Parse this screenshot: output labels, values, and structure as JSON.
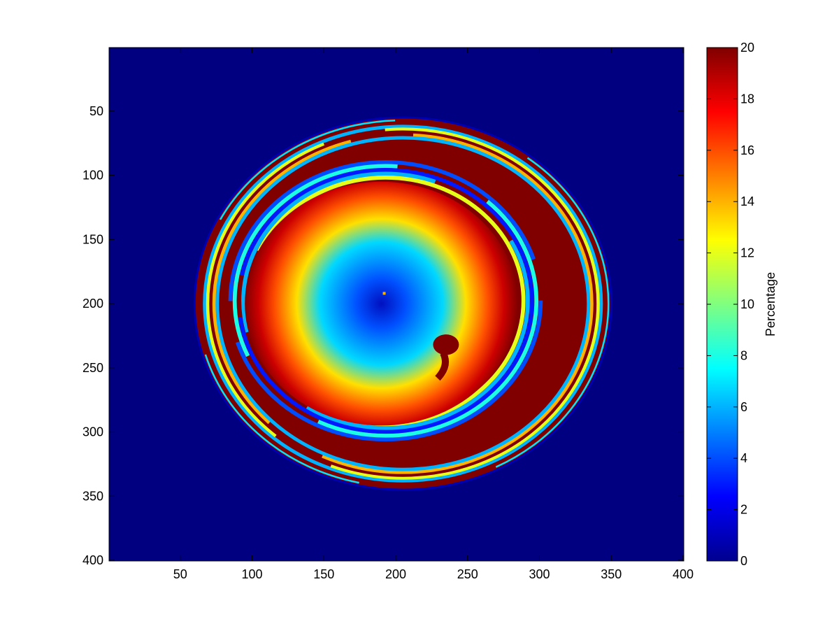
{
  "chart_data": {
    "type": "heatmap",
    "title": "",
    "xlabel": "",
    "ylabel": "",
    "xlim": [
      1,
      400
    ],
    "ylim": [
      1,
      400
    ],
    "y_reversed": true,
    "xticks": [
      50,
      100,
      150,
      200,
      250,
      300,
      350,
      400
    ],
    "yticks": [
      50,
      100,
      150,
      200,
      250,
      300,
      350,
      400
    ],
    "background_value": 0,
    "colormap": "jet",
    "colorbar": {
      "label": "Percentage",
      "min": 0,
      "max": 20,
      "ticks": [
        0,
        2,
        4,
        6,
        8,
        10,
        12,
        14,
        16,
        18,
        20
      ]
    },
    "features": {
      "disk": {
        "center_x": 205,
        "center_y": 200,
        "radius": 145,
        "edge_value": 0
      },
      "spiral_core": {
        "center_x": 190,
        "center_y": 200,
        "value_at_center": 0,
        "value_at_rim": 20,
        "rim_radius": 95
      },
      "outer_ring": {
        "radius": 138,
        "values": [
          6,
          12,
          20,
          14,
          6
        ]
      },
      "inner_ring": {
        "radius": 108,
        "values": [
          4,
          8,
          3,
          6,
          12
        ]
      },
      "bright_spot": {
        "x": 192,
        "y": 192,
        "value": 14
      },
      "notch": {
        "x": 235,
        "y": 232,
        "value": 20
      }
    },
    "grid": false,
    "legend": "none"
  }
}
